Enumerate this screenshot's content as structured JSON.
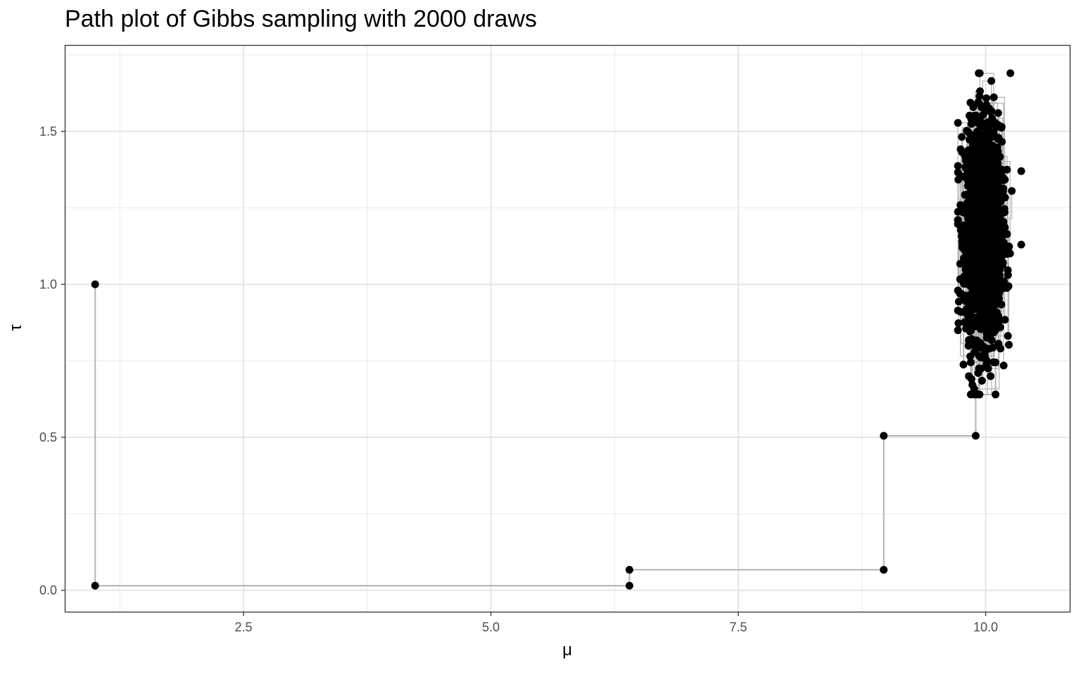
{
  "chart_data": {
    "type": "scatter",
    "title": "Path plot of Gibbs sampling with 2000 draws",
    "xlabel": "μ",
    "ylabel": "τ",
    "xlim": [
      0.7,
      10.85
    ],
    "ylim": [
      -0.07,
      1.78
    ],
    "x_ticks": [
      2.5,
      5.0,
      7.5,
      10.0
    ],
    "x_tick_labels": [
      "2.5",
      "5.0",
      "7.5",
      "10.0"
    ],
    "y_ticks": [
      0.0,
      0.5,
      1.0,
      1.5
    ],
    "y_tick_labels": [
      "0.0",
      "0.5",
      "1.0",
      "1.5"
    ],
    "grid": true,
    "theme": "bw",
    "point_color": "#000000",
    "path_color": "#b3b3b3",
    "path": [
      {
        "mu": 1.0,
        "tau": 1.0
      },
      {
        "mu": 1.0,
        "tau": 0.015
      },
      {
        "mu": 6.4,
        "tau": 0.015
      },
      {
        "mu": 6.4,
        "tau": 0.067
      },
      {
        "mu": 8.97,
        "tau": 0.067
      },
      {
        "mu": 8.97,
        "tau": 0.505
      },
      {
        "mu": 9.9,
        "tau": 0.505
      },
      {
        "mu": 9.9,
        "tau": 0.64
      },
      {
        "mu": 10.1,
        "tau": 0.64
      },
      {
        "mu": 10.1,
        "tau": 0.745
      },
      {
        "mu": 9.85,
        "tau": 0.745
      },
      {
        "mu": 9.85,
        "tau": 0.64
      }
    ],
    "cluster": {
      "n_draws": 2000,
      "mu_center": 9.98,
      "mu_sd": 0.09,
      "tau_center": 1.17,
      "tau_sd": 0.17,
      "mu_range": [
        9.72,
        10.36
      ],
      "tau_range": [
        0.64,
        1.69
      ]
    },
    "highlight_points": [
      {
        "mu": 10.05,
        "tau": 0.7
      },
      {
        "mu": 9.83,
        "tau": 0.7
      },
      {
        "mu": 10.25,
        "tau": 1.69
      },
      {
        "mu": 10.36,
        "tau": 1.37
      },
      {
        "mu": 10.36,
        "tau": 1.13
      },
      {
        "mu": 9.72,
        "tau": 0.98
      },
      {
        "mu": 9.72,
        "tau": 0.85
      },
      {
        "mu": 10.15,
        "tau": 0.79
      },
      {
        "mu": 9.93,
        "tau": 1.69
      }
    ]
  }
}
